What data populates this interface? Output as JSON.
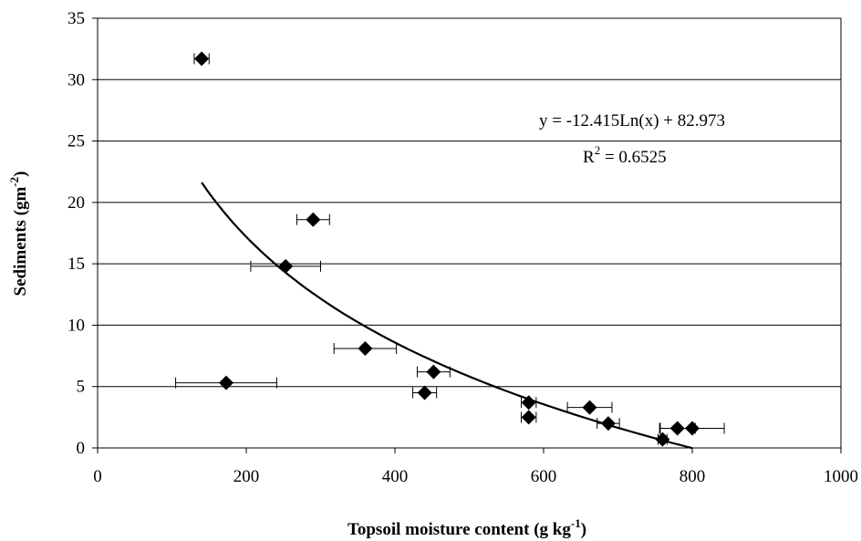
{
  "chart_data": {
    "type": "scatter",
    "title": "",
    "xlabel": "Topsoil moisture content",
    "xlabel_unit_prefix": " (g kg",
    "xlabel_unit_sup": "-1",
    "xlabel_unit_suffix": ")",
    "ylabel": "Sediments",
    "ylabel_unit_prefix": " (gm",
    "ylabel_unit_sup": "-2",
    "ylabel_unit_suffix": ")",
    "xlim": [
      0,
      1000
    ],
    "ylim": [
      0,
      35
    ],
    "x_ticks": [
      0,
      200,
      400,
      600,
      800,
      1000
    ],
    "y_ticks": [
      0,
      5,
      10,
      15,
      20,
      25,
      30,
      35
    ],
    "grid": "horizontal",
    "points": [
      {
        "x": 140,
        "y": 31.7,
        "xerr": 10
      },
      {
        "x": 173,
        "y": 5.3,
        "xerr": 68
      },
      {
        "x": 253,
        "y": 14.8,
        "xerr": 47
      },
      {
        "x": 290,
        "y": 18.6,
        "xerr": 22
      },
      {
        "x": 360,
        "y": 8.1,
        "xerr": 42
      },
      {
        "x": 440,
        "y": 4.5,
        "xerr": 16
      },
      {
        "x": 452,
        "y": 6.2,
        "xerr": 22
      },
      {
        "x": 580,
        "y": 3.7,
        "xerr": 10
      },
      {
        "x": 580,
        "y": 2.5,
        "xerr": 10
      },
      {
        "x": 662,
        "y": 3.3,
        "xerr": 30
      },
      {
        "x": 687,
        "y": 2.0,
        "xerr": 15
      },
      {
        "x": 760,
        "y": 0.7,
        "xerr": 6
      },
      {
        "x": 780,
        "y": 1.6,
        "xerr": 24
      },
      {
        "x": 800,
        "y": 1.6,
        "xerr": 43
      }
    ],
    "trendline": {
      "type": "logarithmic",
      "a": -12.415,
      "b": 82.973,
      "x_range": [
        140,
        800
      ]
    },
    "annotations": {
      "equation": "y = -12.415Ln(x) + 82.973",
      "r2_prefix": "R",
      "r2_sup": "2",
      "r2_suffix": " = 0.6525"
    }
  }
}
